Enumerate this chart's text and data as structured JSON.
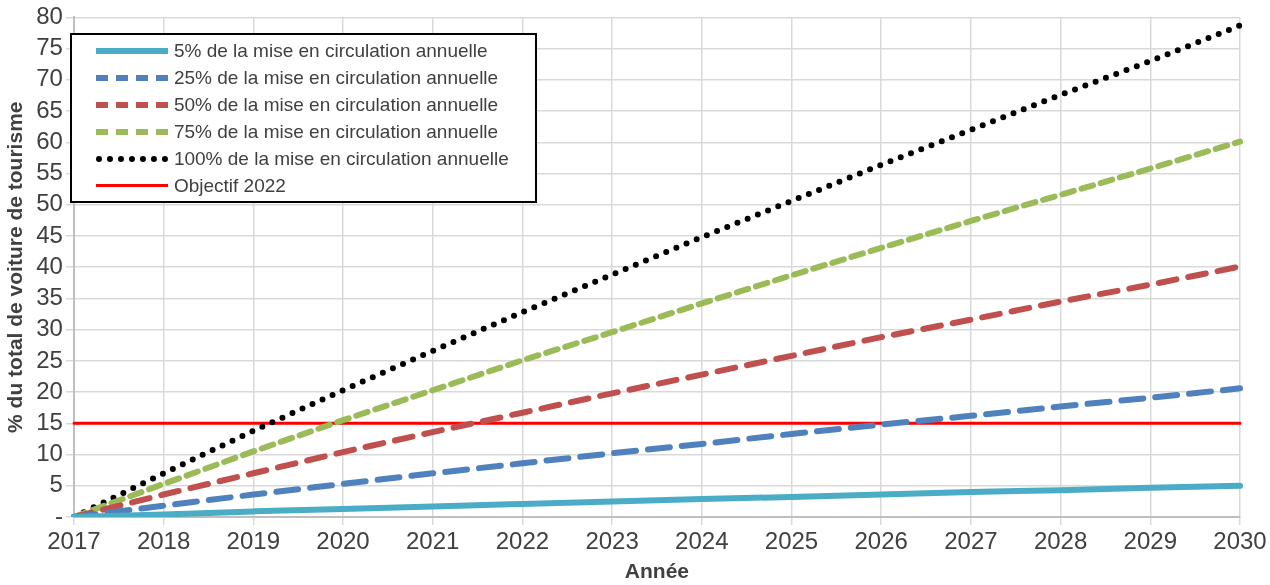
{
  "chart_data": {
    "type": "line",
    "xlabel": "Année",
    "ylabel": "% du total de voiture de tourisme",
    "categories": [
      "2017",
      "2018",
      "2019",
      "2020",
      "2021",
      "2022",
      "2023",
      "2024",
      "2025",
      "2026",
      "2027",
      "2028",
      "2029",
      "2030"
    ],
    "ylim": [
      0,
      80
    ],
    "yticks": [
      {
        "value": 0,
        "label": "-"
      },
      5,
      10,
      15,
      20,
      25,
      30,
      35,
      40,
      45,
      50,
      55,
      60,
      65,
      70,
      75,
      80
    ],
    "grid": true,
    "legend": "top left",
    "marker": "none",
    "series": [
      {
        "name": "5% de la mise en circulation annuelle",
        "color": "#4bacc6",
        "line_style": "solid",
        "values": [
          0,
          0.4,
          0.9,
          1.3,
          1.7,
          2.1,
          2.5,
          2.9,
          3.2,
          3.6,
          4,
          4.3,
          4.7,
          5
        ]
      },
      {
        "name": "25% de la mise en circulation annuelle",
        "color": "#4f81bd",
        "line_style": "dashed",
        "values": [
          0,
          1.8,
          3.6,
          5.3,
          7,
          8.6,
          10.2,
          11.7,
          13.3,
          14.8,
          16.2,
          17.7,
          19.1,
          20.6
        ]
      },
      {
        "name": "50% de la mise en circulation annuelle",
        "color": "#c0504d",
        "line_style": "dashed",
        "values": [
          0,
          3.6,
          7,
          10.4,
          13.6,
          16.7,
          19.8,
          22.8,
          25.8,
          28.8,
          31.6,
          34.5,
          37.2,
          40.1
        ]
      },
      {
        "name": "75% de la mise en circulation annuelle",
        "color": "#9bbb59",
        "line_style": "dashed",
        "values": [
          0,
          5.3,
          10.5,
          15.5,
          20.3,
          25.1,
          29.6,
          34.2,
          38.7,
          43.1,
          47.4,
          51.6,
          55.8,
          60.1
        ]
      },
      {
        "name": "100% de la mise en circulation annuelle",
        "color": "#000000",
        "line_style": "dotted",
        "values": [
          0,
          7,
          13.8,
          20.3,
          26.6,
          32.8,
          38.8,
          44.8,
          50.6,
          56.4,
          62,
          67.6,
          73,
          78.7
        ]
      },
      {
        "name": "Objectif 2022",
        "color": "#ff0000",
        "line_style": "solid",
        "values": [
          15,
          15,
          15,
          15,
          15,
          15,
          15,
          15,
          15,
          15,
          15,
          15,
          15,
          15
        ]
      }
    ]
  }
}
